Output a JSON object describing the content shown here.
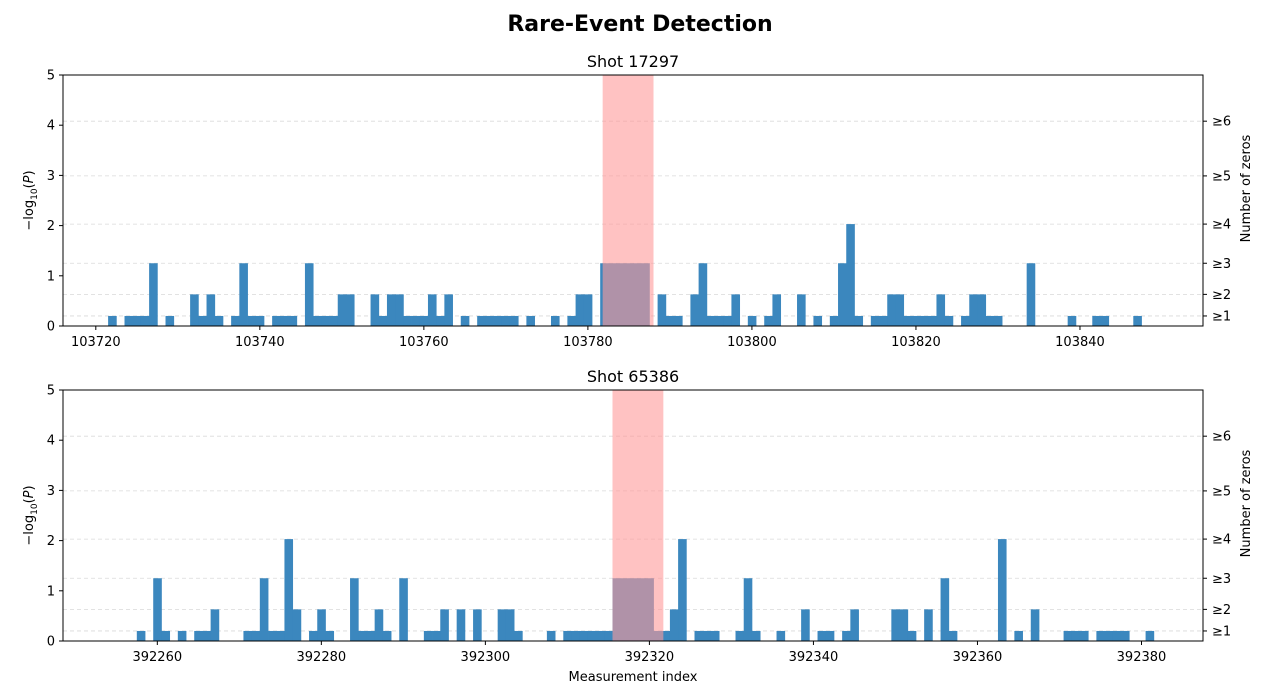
{
  "suptitle": "Rare-Event Detection",
  "colors": {
    "bar": "#3b87be",
    "highlight": "#ff9999",
    "overlap": "#6b6588",
    "grid": "#d9d9d9"
  },
  "chart_data": [
    {
      "type": "bar",
      "title": "Shot 17297",
      "xlabel": "",
      "ylabel": "−log10(P)",
      "ylabel_right": "Number of zeros",
      "xlim": [
        103716,
        103855
      ],
      "ylim": [
        0,
        5
      ],
      "xticks": [
        103720,
        103740,
        103760,
        103780,
        103800,
        103820,
        103840
      ],
      "yticks": [
        0,
        1,
        2,
        3,
        4,
        5
      ],
      "right_ticks": [
        {
          "label": "≥1",
          "value": 0.2
        },
        {
          "label": "≥2",
          "value": 0.63
        },
        {
          "label": "≥3",
          "value": 1.25
        },
        {
          "label": "≥4",
          "value": 2.03
        },
        {
          "label": "≥5",
          "value": 2.99
        },
        {
          "label": "≥6",
          "value": 4.08
        }
      ],
      "highlight_range": [
        103781.8,
        103788
      ],
      "grid": "horizontal dashed at right-axis ticks",
      "bars": [
        [
          103722,
          0.2
        ],
        [
          103724,
          0.2
        ],
        [
          103725,
          0.2
        ],
        [
          103726,
          0.2
        ],
        [
          103727,
          1.25
        ],
        [
          103729,
          0.2
        ],
        [
          103732,
          0.63
        ],
        [
          103733,
          0.2
        ],
        [
          103734,
          0.63
        ],
        [
          103735,
          0.2
        ],
        [
          103737,
          0.2
        ],
        [
          103738,
          1.25
        ],
        [
          103739,
          0.2
        ],
        [
          103740,
          0.2
        ],
        [
          103742,
          0.2
        ],
        [
          103743,
          0.2
        ],
        [
          103744,
          0.2
        ],
        [
          103746,
          1.25
        ],
        [
          103747,
          0.2
        ],
        [
          103748,
          0.2
        ],
        [
          103749,
          0.2
        ],
        [
          103750,
          0.63
        ],
        [
          103751,
          0.63
        ],
        [
          103754,
          0.63
        ],
        [
          103755,
          0.2
        ],
        [
          103756,
          0.63
        ],
        [
          103757,
          0.63
        ],
        [
          103758,
          0.2
        ],
        [
          103759,
          0.2
        ],
        [
          103760,
          0.2
        ],
        [
          103761,
          0.63
        ],
        [
          103762,
          0.2
        ],
        [
          103763,
          0.63
        ],
        [
          103765,
          0.2
        ],
        [
          103767,
          0.2
        ],
        [
          103768,
          0.2
        ],
        [
          103769,
          0.2
        ],
        [
          103770,
          0.2
        ],
        [
          103771,
          0.2
        ],
        [
          103773,
          0.2
        ],
        [
          103776,
          0.2
        ],
        [
          103778,
          0.2
        ],
        [
          103779,
          0.63
        ],
        [
          103780,
          0.63
        ],
        [
          103782,
          1.25
        ],
        [
          103783,
          1.25
        ],
        [
          103784,
          1.25
        ],
        [
          103785,
          1.25
        ],
        [
          103786,
          1.25
        ],
        [
          103787,
          1.25
        ],
        [
          103789,
          0.63
        ],
        [
          103790,
          0.2
        ],
        [
          103791,
          0.2
        ],
        [
          103793,
          0.63
        ],
        [
          103794,
          1.25
        ],
        [
          103795,
          0.2
        ],
        [
          103796,
          0.2
        ],
        [
          103797,
          0.2
        ],
        [
          103798,
          0.63
        ],
        [
          103800,
          0.2
        ],
        [
          103802,
          0.2
        ],
        [
          103803,
          0.63
        ],
        [
          103806,
          0.63
        ],
        [
          103808,
          0.2
        ],
        [
          103810,
          0.2
        ],
        [
          103811,
          1.25
        ],
        [
          103812,
          2.03
        ],
        [
          103813,
          0.2
        ],
        [
          103815,
          0.2
        ],
        [
          103816,
          0.2
        ],
        [
          103817,
          0.63
        ],
        [
          103818,
          0.63
        ],
        [
          103819,
          0.2
        ],
        [
          103820,
          0.2
        ],
        [
          103821,
          0.2
        ],
        [
          103822,
          0.2
        ],
        [
          103823,
          0.63
        ],
        [
          103824,
          0.2
        ],
        [
          103826,
          0.2
        ],
        [
          103827,
          0.63
        ],
        [
          103828,
          0.63
        ],
        [
          103829,
          0.2
        ],
        [
          103830,
          0.2
        ],
        [
          103834,
          1.25
        ],
        [
          103839,
          0.2
        ],
        [
          103842,
          0.2
        ],
        [
          103843,
          0.2
        ],
        [
          103847,
          0.2
        ]
      ]
    },
    {
      "type": "bar",
      "title": "Shot 65386",
      "xlabel": "Measurement index",
      "ylabel": "−log10(P)",
      "ylabel_right": "Number of zeros",
      "xlim": [
        392248.5,
        392387.5
      ],
      "ylim": [
        0,
        5
      ],
      "xticks": [
        392260,
        392280,
        392300,
        392320,
        392340,
        392360,
        392380
      ],
      "yticks": [
        0,
        1,
        2,
        3,
        4,
        5
      ],
      "right_ticks": [
        {
          "label": "≥1",
          "value": 0.2
        },
        {
          "label": "≥2",
          "value": 0.63
        },
        {
          "label": "≥3",
          "value": 1.25
        },
        {
          "label": "≥4",
          "value": 2.03
        },
        {
          "label": "≥5",
          "value": 2.99
        },
        {
          "label": "≥6",
          "value": 4.08
        }
      ],
      "highlight_range": [
        392315.5,
        392321.7
      ],
      "grid": "horizontal dashed at right-axis ticks",
      "bars": [
        [
          392258,
          0.2
        ],
        [
          392260,
          1.25
        ],
        [
          392261,
          0.2
        ],
        [
          392263,
          0.2
        ],
        [
          392265,
          0.2
        ],
        [
          392266,
          0.2
        ],
        [
          392267,
          0.63
        ],
        [
          392271,
          0.2
        ],
        [
          392272,
          0.2
        ],
        [
          392273,
          1.25
        ],
        [
          392274,
          0.2
        ],
        [
          392275,
          0.2
        ],
        [
          392276,
          2.03
        ],
        [
          392277,
          0.63
        ],
        [
          392279,
          0.2
        ],
        [
          392280,
          0.63
        ],
        [
          392281,
          0.2
        ],
        [
          392284,
          1.25
        ],
        [
          392285,
          0.2
        ],
        [
          392286,
          0.2
        ],
        [
          392287,
          0.63
        ],
        [
          392288,
          0.2
        ],
        [
          392290,
          1.25
        ],
        [
          392293,
          0.2
        ],
        [
          392294,
          0.2
        ],
        [
          392295,
          0.63
        ],
        [
          392297,
          0.63
        ],
        [
          392299,
          0.63
        ],
        [
          392302,
          0.63
        ],
        [
          392303,
          0.63
        ],
        [
          392304,
          0.2
        ],
        [
          392308,
          0.2
        ],
        [
          392310,
          0.2
        ],
        [
          392311,
          0.2
        ],
        [
          392312,
          0.2
        ],
        [
          392313,
          0.2
        ],
        [
          392314,
          0.2
        ],
        [
          392315,
          0.2
        ],
        [
          392316,
          1.25
        ],
        [
          392317,
          1.25
        ],
        [
          392318,
          1.25
        ],
        [
          392319,
          1.25
        ],
        [
          392320,
          1.25
        ],
        [
          392321,
          0.2
        ],
        [
          392322,
          0.2
        ],
        [
          392323,
          0.63
        ],
        [
          392324,
          2.03
        ],
        [
          392326,
          0.2
        ],
        [
          392327,
          0.2
        ],
        [
          392328,
          0.2
        ],
        [
          392331,
          0.2
        ],
        [
          392332,
          1.25
        ],
        [
          392333,
          0.2
        ],
        [
          392336,
          0.2
        ],
        [
          392339,
          0.63
        ],
        [
          392341,
          0.2
        ],
        [
          392342,
          0.2
        ],
        [
          392344,
          0.2
        ],
        [
          392345,
          0.63
        ],
        [
          392350,
          0.63
        ],
        [
          392351,
          0.63
        ],
        [
          392352,
          0.2
        ],
        [
          392354,
          0.63
        ],
        [
          392356,
          1.25
        ],
        [
          392357,
          0.2
        ],
        [
          392363,
          2.03
        ],
        [
          392365,
          0.2
        ],
        [
          392367,
          0.63
        ],
        [
          392371,
          0.2
        ],
        [
          392372,
          0.2
        ],
        [
          392373,
          0.2
        ],
        [
          392375,
          0.2
        ],
        [
          392376,
          0.2
        ],
        [
          392377,
          0.2
        ],
        [
          392378,
          0.2
        ],
        [
          392381,
          0.2
        ]
      ]
    }
  ]
}
